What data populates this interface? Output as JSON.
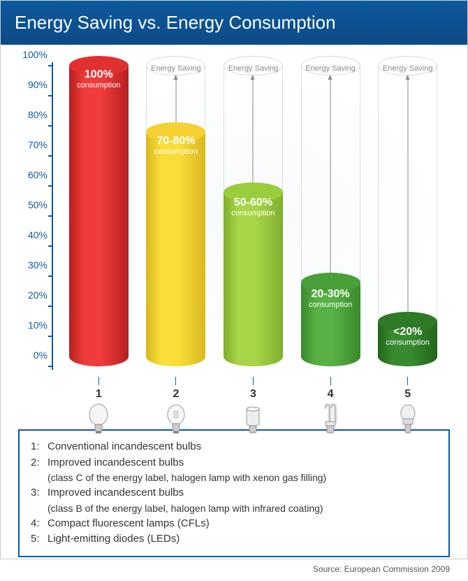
{
  "title": "Energy Saving vs. Energy Consumption",
  "chart": {
    "type": "cylinder-bar",
    "y_axis": {
      "min": 0,
      "max": 100,
      "step": 10,
      "suffix": "%",
      "color": "#0d5a9f",
      "fontsize": 14
    },
    "saving_label": "Energy Saving",
    "consumption_label": "consumption",
    "bars": [
      {
        "num": "1",
        "height_pct": 100,
        "show_outline": false,
        "show_saving": false,
        "value_label": "100%",
        "text_top_pct": 4,
        "fill_top": "#e03030",
        "fill_body_light": "#ef3b3b",
        "fill_body_dark": "#b81f1f"
      },
      {
        "num": "2",
        "height_pct": 78,
        "show_outline": true,
        "show_saving": true,
        "value_label": "70-80%",
        "text_top_pct": 4,
        "value_color": "#fff",
        "fill_top": "#f5d030",
        "fill_body_light": "#f9de3a",
        "fill_body_dark": "#d8b820"
      },
      {
        "num": "3",
        "height_pct": 58,
        "show_outline": true,
        "show_saving": true,
        "value_label": "50-60%",
        "text_top_pct": 6,
        "fill_top": "#9acc3c",
        "fill_body_light": "#a8d648",
        "fill_body_dark": "#7fae2e"
      },
      {
        "num": "4",
        "height_pct": 28,
        "show_outline": true,
        "show_saving": true,
        "value_label": "20-30%",
        "text_top_pct": 8,
        "fill_top": "#4aa038",
        "fill_body_light": "#56b042",
        "fill_body_dark": "#3a8a2c"
      },
      {
        "num": "5",
        "height_pct": 15,
        "show_outline": true,
        "show_saving": true,
        "value_label": "<20%",
        "text_top_pct": 6,
        "fill_top": "#2e7a26",
        "fill_body_light": "#388a2e",
        "fill_body_dark": "#23651c"
      }
    ],
    "bulb_icons": [
      "incandescent",
      "halogen-round",
      "halogen-capsule",
      "cfl",
      "led"
    ]
  },
  "legend": [
    {
      "num": "1:",
      "text": "Conventional incandescent bulbs"
    },
    {
      "num": "2:",
      "text": "Improved incandescent bulbs",
      "sub": "(class C of the energy label, halogen lamp with xenon gas filling)"
    },
    {
      "num": "3:",
      "text": "Improved incandescent bulbs",
      "sub": "(class B of the energy label, halogen lamp with infrared coating)"
    },
    {
      "num": "4:",
      "text": "Compact fluorescent lamps (CFLs)"
    },
    {
      "num": "5:",
      "text": "Light-emitting diodes (LEDs)"
    }
  ],
  "source": "Source: European Commission 2009"
}
